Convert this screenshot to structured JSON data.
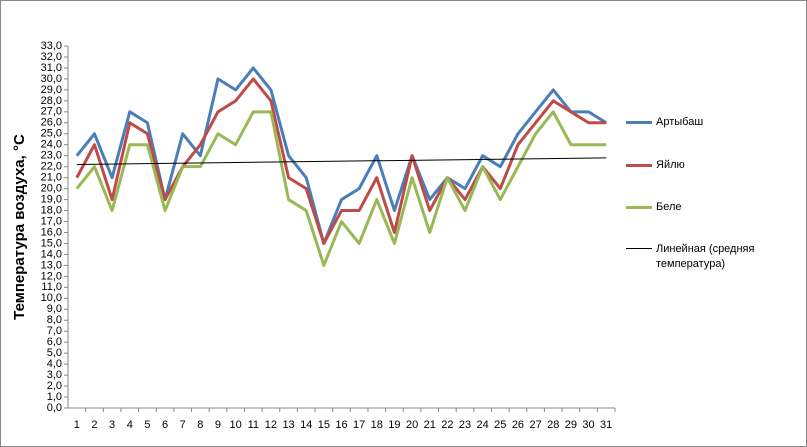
{
  "chart_data": {
    "type": "line",
    "y_label": "Температура воздуха, °C",
    "categories": [
      "1",
      "2",
      "3",
      "4",
      "5",
      "6",
      "7",
      "8",
      "9",
      "10",
      "11",
      "12",
      "13",
      "14",
      "15",
      "16",
      "17",
      "18",
      "19",
      "20",
      "21",
      "22",
      "23",
      "24",
      "25",
      "26",
      "27",
      "28",
      "29",
      "30",
      "31"
    ],
    "series": [
      {
        "name": "Артыбаш",
        "color": "#4a7ebb",
        "values": [
          23,
          25,
          21,
          27,
          26,
          19,
          25,
          23,
          30,
          29,
          31,
          29,
          23,
          21,
          15,
          19,
          20,
          23,
          18,
          23,
          19,
          21,
          20,
          23,
          22,
          25,
          27,
          29,
          27,
          27,
          26
        ]
      },
      {
        "name": "Яйлю",
        "color": "#be4b48",
        "values": [
          21,
          24,
          19,
          26,
          25,
          19,
          22,
          24,
          27,
          28,
          30,
          28,
          21,
          20,
          15,
          18,
          18,
          21,
          16,
          23,
          18,
          21,
          19,
          22,
          20,
          24,
          26,
          28,
          27,
          26,
          26
        ]
      },
      {
        "name": "Беле",
        "color": "#98b954",
        "values": [
          20,
          22,
          18,
          24,
          24,
          18,
          22,
          22,
          25,
          24,
          27,
          27,
          19,
          18,
          13,
          17,
          15,
          19,
          15,
          21,
          16,
          21,
          18,
          22,
          19,
          22,
          25,
          27,
          24,
          24,
          24
        ]
      }
    ],
    "trendline": {
      "name": "Линейная (средняя температура)",
      "color": "#000000",
      "values": [
        22.2,
        22.8
      ]
    },
    "ylim": [
      0,
      33
    ],
    "yticks": [
      {
        "value": 0,
        "label": "0,0"
      },
      {
        "value": 1,
        "label": "1,0"
      },
      {
        "value": 2,
        "label": "2,0"
      },
      {
        "value": 3,
        "label": "3,0"
      },
      {
        "value": 4,
        "label": "4,0"
      },
      {
        "value": 5,
        "label": "5,0"
      },
      {
        "value": 6,
        "label": "6,0"
      },
      {
        "value": 7,
        "label": "7,0"
      },
      {
        "value": 8,
        "label": "8,0"
      },
      {
        "value": 9,
        "label": "9,0"
      },
      {
        "value": 10,
        "label": "10,0"
      },
      {
        "value": 11,
        "label": "11,0"
      },
      {
        "value": 12,
        "label": "12,0"
      },
      {
        "value": 13,
        "label": "13,0"
      },
      {
        "value": 14,
        "label": "14,0"
      },
      {
        "value": 15,
        "label": "15,0"
      },
      {
        "value": 16,
        "label": "16,0"
      },
      {
        "value": 17,
        "label": "17,0"
      },
      {
        "value": 18,
        "label": "18,0"
      },
      {
        "value": 19,
        "label": "19,0"
      },
      {
        "value": 20,
        "label": "20,0"
      },
      {
        "value": 21,
        "label": "21,0"
      },
      {
        "value": 22,
        "label": "22,0"
      },
      {
        "value": 23,
        "label": "23,0"
      },
      {
        "value": 24,
        "label": "24,0"
      },
      {
        "value": 25,
        "label": "25,0"
      },
      {
        "value": 26,
        "label": "26,0"
      },
      {
        "value": 27,
        "label": "27,0"
      },
      {
        "value": 28,
        "label": "28,0"
      },
      {
        "value": 29,
        "label": "29,0"
      },
      {
        "value": 30,
        "label": "30,0"
      },
      {
        "value": 31,
        "label": "31,0"
      },
      {
        "value": 32,
        "label": "32,0"
      },
      {
        "value": 33,
        "label": "33,0"
      }
    ]
  }
}
